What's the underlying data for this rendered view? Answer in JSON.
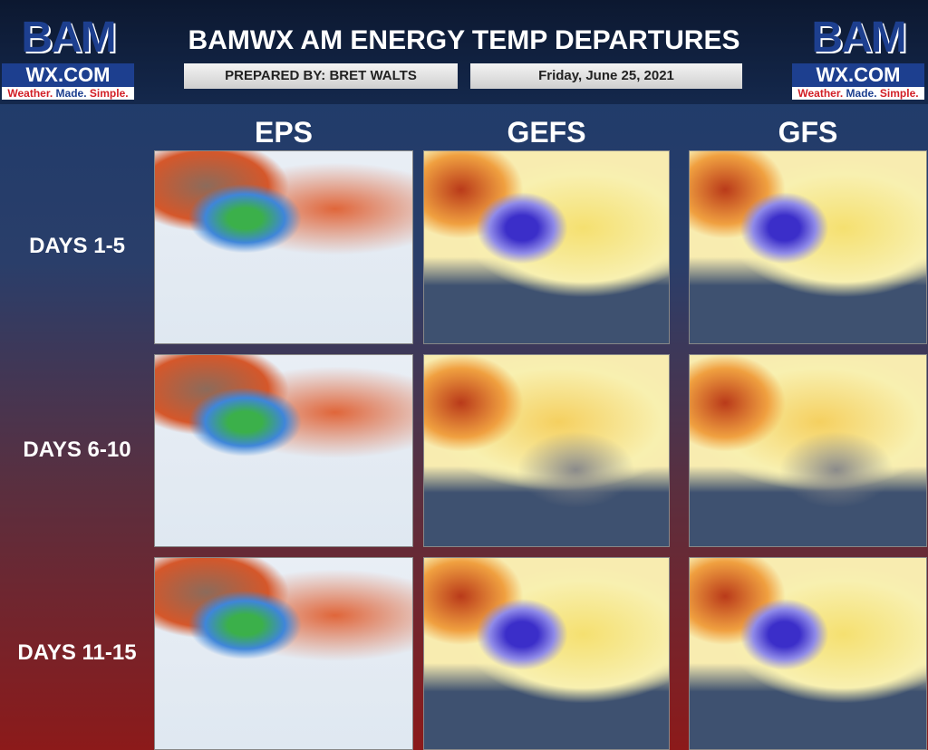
{
  "header": {
    "title": "BAMWX AM ENERGY TEMP DEPARTURES",
    "prepared_by": "PREPARED BY: BRET WALTS",
    "date": "Friday, June 25, 2021"
  },
  "logo": {
    "mark": "BAM",
    "site": "WX.COM",
    "tagline_1": "Weather.",
    "tagline_2": "Made.",
    "tagline_3": "Simple."
  },
  "columns": [
    "EPS",
    "GEFS",
    "GFS"
  ],
  "rows": [
    "DAYS 1-5",
    "DAYS 6-10",
    "DAYS 11-15"
  ]
}
